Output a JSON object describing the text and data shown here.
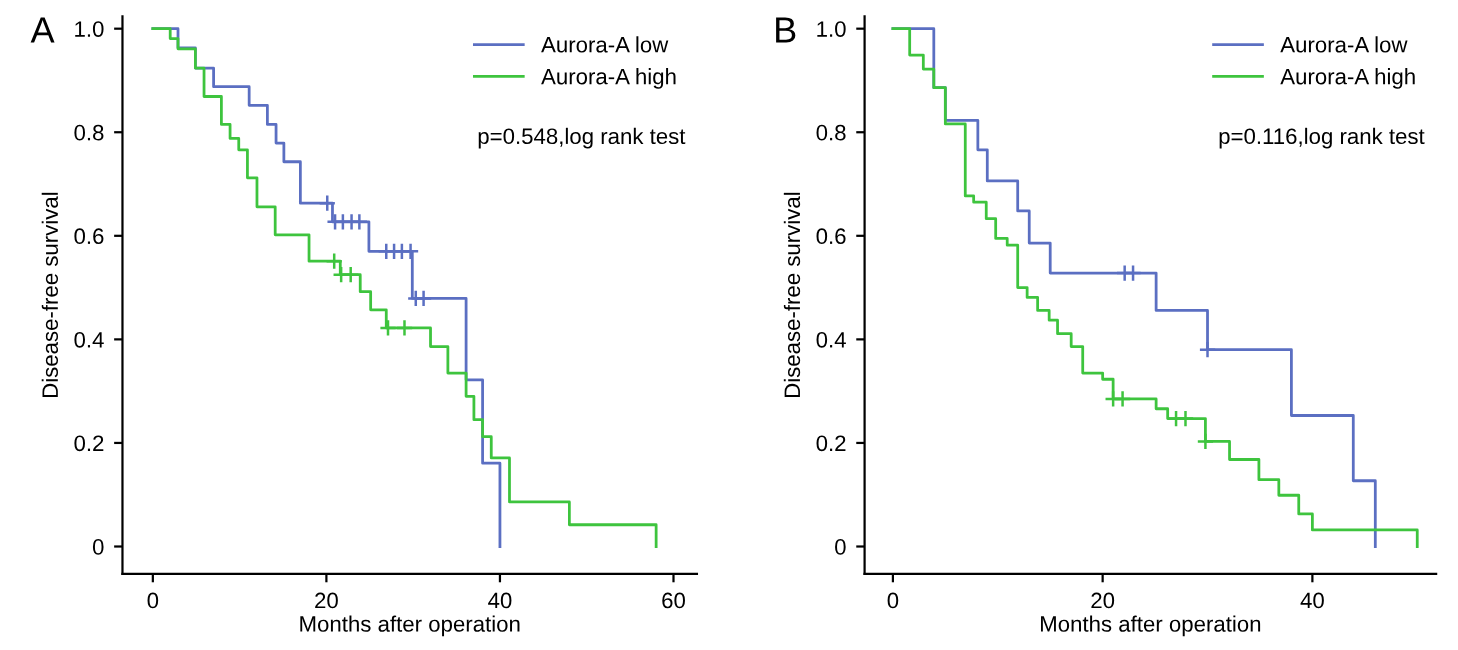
{
  "chart_data": [
    {
      "type": "step",
      "title": "A",
      "xlabel": "Months after operation",
      "ylabel": "Disease-free survival",
      "xlim": [
        -3.5,
        62.7
      ],
      "ylim": [
        -0.053,
        1.024
      ],
      "xticks": [
        0,
        20,
        40,
        60
      ],
      "yticks": [
        0,
        {
          "value": 0.2,
          "label": "0.2"
        },
        {
          "value": 0.4,
          "label": "0.4"
        },
        {
          "value": 0.6,
          "label": "0.6"
        },
        {
          "value": 0.8,
          "label": "0.8"
        },
        {
          "value": 1,
          "label": "1.0"
        }
      ],
      "grid": false,
      "legend": "top right",
      "annotations": [
        "p=0.548,log rank test"
      ],
      "series": [
        {
          "name": "Aurora-A low",
          "color": "#5b6fc2",
          "x": [
            0,
            2.9,
            4.9,
            7.0,
            11.1,
            13.2,
            14.2,
            15.1,
            17.0,
            20.7,
            24.9,
            29.9,
            36.1,
            38.0,
            40
          ],
          "values": [
            1.0,
            0.963,
            0.924,
            0.888,
            0.852,
            0.815,
            0.779,
            0.743,
            0.663,
            0.627,
            0.57,
            0.479,
            0.322,
            0.161,
            0
          ]
        },
        {
          "name": "Aurora-A high",
          "color": "#3ec43e",
          "x": [
            0,
            2.0,
            2.9,
            4.9,
            5.9,
            7.9,
            8.9,
            9.9,
            10.9,
            12.0,
            14.1,
            18.0,
            21.6,
            23.9,
            25.1,
            26.9,
            32.0,
            34.0,
            36.1,
            37.0,
            38.0,
            39.0,
            41.1,
            48.0,
            58
          ],
          "values": [
            1.0,
            0.981,
            0.961,
            0.924,
            0.869,
            0.815,
            0.788,
            0.766,
            0.712,
            0.656,
            0.602,
            0.551,
            0.525,
            0.492,
            0.457,
            0.422,
            0.386,
            0.335,
            0.29,
            0.245,
            0.212,
            0.171,
            0.086,
            0.042,
            0
          ]
        },
        {
          "type": "scatter",
          "marker": "cross",
          "color": "#5b6fc2",
          "x": [
            20.1,
            21.0,
            21.9,
            22.9,
            23.8,
            26.9,
            27.8,
            28.7,
            29.7,
            30.3,
            31.2
          ],
          "values": [
            0.663,
            0.627,
            0.627,
            0.627,
            0.627,
            0.57,
            0.57,
            0.57,
            0.57,
            0.479,
            0.479
          ]
        },
        {
          "type": "scatter",
          "marker": "cross",
          "color": "#3ec43e",
          "x": [
            20.9,
            21.7,
            22.8,
            27.1,
            29.0
          ],
          "values": [
            0.551,
            0.525,
            0.525,
            0.422,
            0.422
          ]
        }
      ]
    },
    {
      "type": "step",
      "title": "B",
      "xlabel": "Months after operation",
      "ylabel": "Disease-free survival",
      "xlim": [
        -2.7,
        51.8
      ],
      "ylim": [
        -0.053,
        1.024
      ],
      "xticks": [
        0,
        20,
        40
      ],
      "yticks": [
        0,
        {
          "value": 0.2,
          "label": "0.2"
        },
        {
          "value": 0.4,
          "label": "0.4"
        },
        {
          "value": 0.6,
          "label": "0.6"
        },
        {
          "value": 0.8,
          "label": "0.8"
        },
        {
          "value": 1,
          "label": "1.0"
        }
      ],
      "grid": false,
      "legend": "top right",
      "annotations": [
        "p=0.116,log rank test"
      ],
      "series": [
        {
          "name": "Aurora-A low",
          "color": "#5b6fc2",
          "x": [
            0,
            3.9,
            5.0,
            8.1,
            9.0,
            11.9,
            13.0,
            15.0,
            25.1,
            30.0,
            38.0,
            43.9,
            46
          ],
          "values": [
            1.0,
            0.886,
            0.823,
            0.766,
            0.706,
            0.648,
            0.586,
            0.528,
            0.456,
            0.38,
            0.253,
            0.127,
            0
          ]
        },
        {
          "name": "Aurora-A high",
          "color": "#3ec43e",
          "x": [
            0,
            1.6,
            2.9,
            3.9,
            5.0,
            6.9,
            7.7,
            8.9,
            9.8,
            10.9,
            11.9,
            12.8,
            13.8,
            14.9,
            15.7,
            17.0,
            18.1,
            20.0,
            21.0,
            25.1,
            26.2,
            29.8,
            32.1,
            34.9,
            36.8,
            38.7,
            40.0,
            50
          ],
          "values": [
            1.0,
            0.949,
            0.922,
            0.886,
            0.816,
            0.677,
            0.665,
            0.633,
            0.595,
            0.582,
            0.5,
            0.481,
            0.456,
            0.437,
            0.411,
            0.386,
            0.335,
            0.323,
            0.285,
            0.266,
            0.247,
            0.203,
            0.168,
            0.129,
            0.099,
            0.063,
            0.032,
            0
          ]
        },
        {
          "type": "scatter",
          "marker": "cross",
          "color": "#5b6fc2",
          "x": [
            22.1,
            22.9,
            30.0
          ],
          "values": [
            0.528,
            0.528,
            0.38
          ]
        },
        {
          "type": "scatter",
          "marker": "cross",
          "color": "#3ec43e",
          "x": [
            21.0,
            21.9,
            27.0,
            27.9,
            29.8
          ],
          "values": [
            0.285,
            0.285,
            0.247,
            0.247,
            0.203
          ]
        }
      ]
    }
  ]
}
